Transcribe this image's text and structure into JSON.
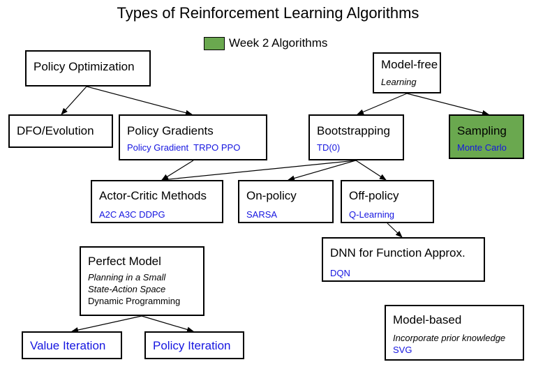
{
  "title": "Types of Reinforcement Learning Algorithms",
  "legend": {
    "label": "Week 2 Algorithms",
    "color": "#6aa84f"
  },
  "nodes": {
    "policy_optimization": {
      "title": "Policy Optimization"
    },
    "model_free": {
      "title": "Model-free",
      "subtitle": "Learning"
    },
    "dfo_evolution": {
      "title": "DFO/Evolution"
    },
    "policy_gradients": {
      "title": "Policy Gradients",
      "examples": "Policy Gradient  TRPO PPO"
    },
    "bootstrapping": {
      "title": "Bootstrapping",
      "examples": "TD(0)"
    },
    "sampling": {
      "title": "Sampling",
      "examples": "Monte Carlo"
    },
    "actor_critic": {
      "title": "Actor-Critic Methods",
      "examples": "A2C A3C DDPG"
    },
    "on_policy": {
      "title": "On-policy",
      "examples": "SARSA"
    },
    "off_policy": {
      "title": "Off-policy",
      "examples": "Q-Learning"
    },
    "dnn_function_approx": {
      "title": "DNN for Function Approx.",
      "examples": "DQN"
    },
    "perfect_model": {
      "title": "Perfect Model",
      "subtitle_line1": "Planning in a Small",
      "subtitle_line2": "State-Action Space",
      "method": "Dynamic Programming"
    },
    "value_iteration": {
      "title": "Value Iteration"
    },
    "policy_iteration": {
      "title": "Policy Iteration"
    },
    "model_based": {
      "title": "Model-based",
      "subtitle": "Incorporate prior knowledge",
      "examples": "SVG"
    }
  },
  "colors": {
    "week2": "#6aa84f",
    "example_text": "#1515e0",
    "border": "#000000"
  }
}
